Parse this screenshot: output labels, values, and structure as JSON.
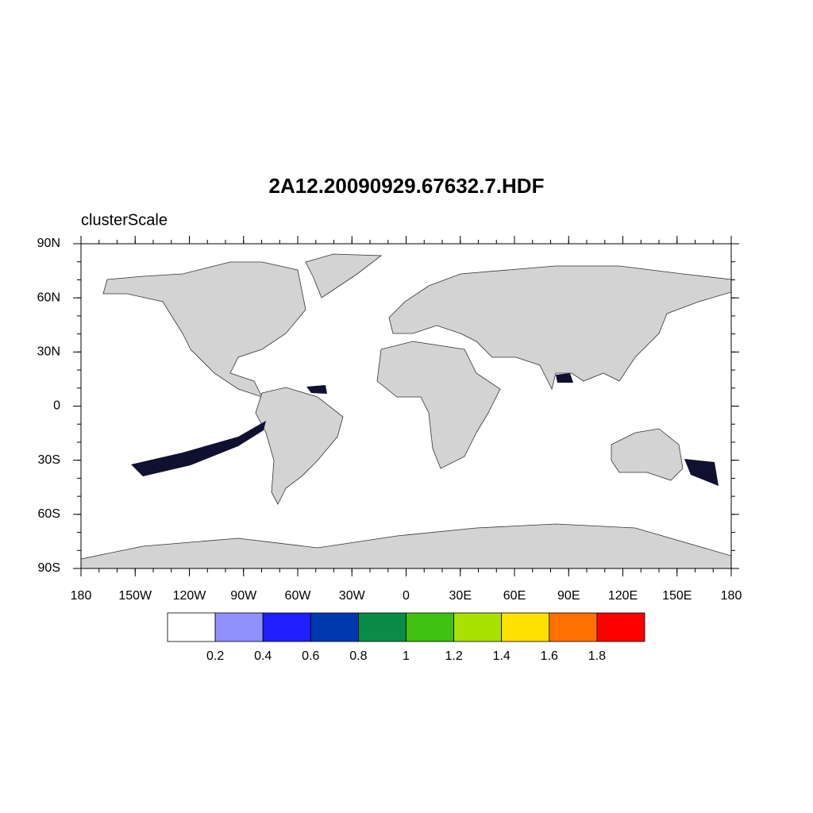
{
  "title": "2A12.20090929.67632.7.HDF",
  "subtitle": "clusterScale",
  "lon_ticks": [
    "180",
    "150W",
    "120W",
    "90W",
    "60W",
    "30W",
    "0",
    "30E",
    "60E",
    "90E",
    "120E",
    "150E",
    "180"
  ],
  "lat_ticks": [
    "90N",
    "60N",
    "30N",
    "0",
    "30S",
    "60S",
    "90S"
  ],
  "colorbar": {
    "colors": [
      "#ffffff",
      "#9090ff",
      "#2020ff",
      "#0038b0",
      "#088c48",
      "#40c010",
      "#a8e000",
      "#ffe000",
      "#ff7000",
      "#ff0000"
    ],
    "labels": [
      "0.2",
      "0.4",
      "0.6",
      "0.8",
      "1",
      "1.2",
      "1.4",
      "1.6",
      "1.8"
    ]
  }
}
